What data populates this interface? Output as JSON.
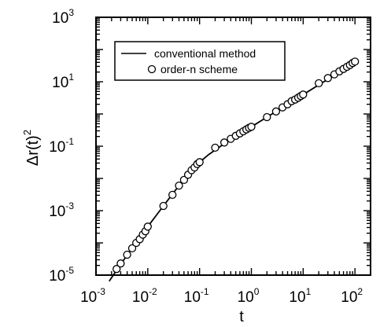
{
  "chart_data": {
    "type": "line",
    "xscale": "log",
    "yscale": "log",
    "xlim": [
      0.001,
      200
    ],
    "ylim": [
      1e-05,
      1000
    ],
    "xlabel": "t",
    "ylabel": "Δr(t)²",
    "ylabel_base": "Δr(t)",
    "ylabel_exp": "2",
    "grid": false,
    "legend_position": "top-left",
    "x_ticks": [
      {
        "base": "10",
        "exp": "-3",
        "value": 0.001
      },
      {
        "base": "10",
        "exp": "-2",
        "value": 0.01
      },
      {
        "base": "10",
        "exp": "-1",
        "value": 0.1
      },
      {
        "base": "10",
        "exp": "0",
        "value": 1
      },
      {
        "base": "10",
        "exp": "1",
        "value": 10
      },
      {
        "base": "10",
        "exp": "2",
        "value": 100
      }
    ],
    "y_ticks": [
      {
        "base": "10",
        "exp": "-5",
        "value": 1e-05
      },
      {
        "base": "10",
        "exp": "-3",
        "value": 0.001
      },
      {
        "base": "10",
        "exp": "-1",
        "value": 0.1
      },
      {
        "base": "10",
        "exp": "1",
        "value": 10
      },
      {
        "base": "10",
        "exp": "3",
        "value": 1000
      }
    ],
    "series": [
      {
        "name": "conventional method",
        "style": "line",
        "color": "#000000",
        "x": [
          0.0018,
          0.003,
          0.005,
          0.01,
          0.02,
          0.04,
          0.07,
          0.1,
          0.15,
          0.3,
          0.6,
          1,
          2,
          5,
          10,
          20,
          50,
          110
        ],
        "y": [
          6.5e-06,
          2.2e-05,
          6.8e-05,
          0.00032,
          0.0014,
          0.006,
          0.018,
          0.032,
          0.055,
          0.12,
          0.24,
          0.4,
          0.8,
          2,
          4,
          8,
          20,
          45
        ]
      },
      {
        "name": "order-n scheme",
        "style": "marker",
        "marker": "open-circle",
        "color": "#000000",
        "x": [
          0.0025,
          0.003,
          0.004,
          0.005,
          0.006,
          0.007,
          0.008,
          0.009,
          0.01,
          0.02,
          0.03,
          0.04,
          0.05,
          0.06,
          0.07,
          0.08,
          0.09,
          0.1,
          0.2,
          0.3,
          0.4,
          0.5,
          0.6,
          0.7,
          0.8,
          0.9,
          1,
          2,
          3,
          4,
          5,
          6,
          7,
          8,
          9,
          10,
          20,
          30,
          40,
          50,
          60,
          70,
          80,
          90,
          100
        ],
        "y": [
          1.55e-05,
          2.3e-05,
          4.3e-05,
          6.8e-05,
          0.0001,
          0.00013,
          0.00018,
          0.00023,
          0.00032,
          0.0014,
          0.0031,
          0.006,
          0.009,
          0.013,
          0.018,
          0.022,
          0.028,
          0.032,
          0.09,
          0.13,
          0.17,
          0.21,
          0.25,
          0.29,
          0.33,
          0.37,
          0.4,
          0.8,
          1.2,
          1.6,
          2,
          2.5,
          2.8,
          3.2,
          3.6,
          4,
          9,
          13,
          17,
          21,
          25,
          29,
          33,
          38,
          42
        ]
      }
    ]
  }
}
